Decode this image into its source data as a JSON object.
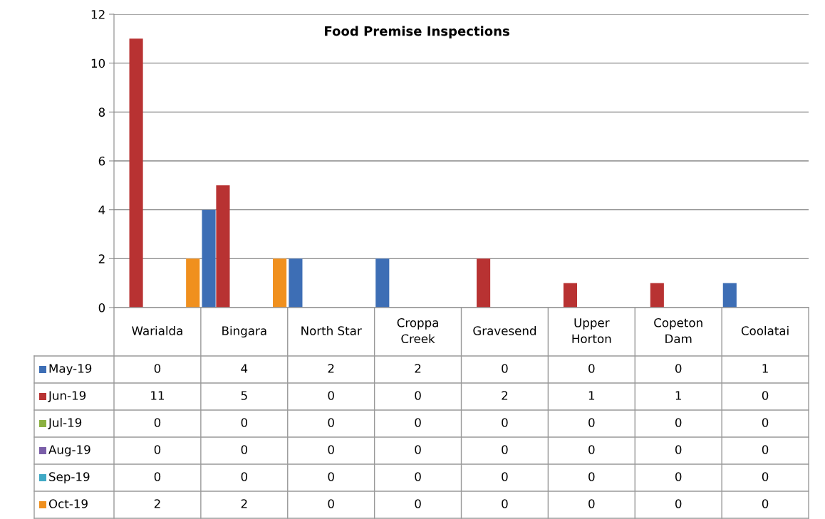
{
  "chart_data": {
    "type": "bar",
    "title": "Food Premise Inspections",
    "categories": [
      "Warialda",
      "Bingara",
      "North Star",
      "Croppa Creek",
      "Gravesend",
      "Upper Horton",
      "Copeton Dam",
      "Coolatai"
    ],
    "series": [
      {
        "name": "May-19",
        "color": "#3d6eb5",
        "values": [
          0,
          4,
          2,
          2,
          0,
          0,
          0,
          1
        ]
      },
      {
        "name": "Jun-19",
        "color": "#b83232",
        "values": [
          11,
          5,
          0,
          0,
          2,
          1,
          1,
          0
        ]
      },
      {
        "name": "Jul-19",
        "color": "#8ab040",
        "values": [
          0,
          0,
          0,
          0,
          0,
          0,
          0,
          0
        ]
      },
      {
        "name": "Aug-19",
        "color": "#7a5ea8",
        "values": [
          0,
          0,
          0,
          0,
          0,
          0,
          0,
          0
        ]
      },
      {
        "name": "Sep-19",
        "color": "#3fa9c5",
        "values": [
          0,
          0,
          0,
          0,
          0,
          0,
          0,
          0
        ]
      },
      {
        "name": "Oct-19",
        "color": "#f0901e",
        "values": [
          2,
          2,
          0,
          0,
          0,
          0,
          0,
          0
        ]
      }
    ],
    "ylim": [
      0,
      12
    ],
    "yticks": [
      0,
      2,
      4,
      6,
      8,
      10,
      12
    ],
    "grid": "y",
    "data_labels": true,
    "legend": "bottom"
  }
}
